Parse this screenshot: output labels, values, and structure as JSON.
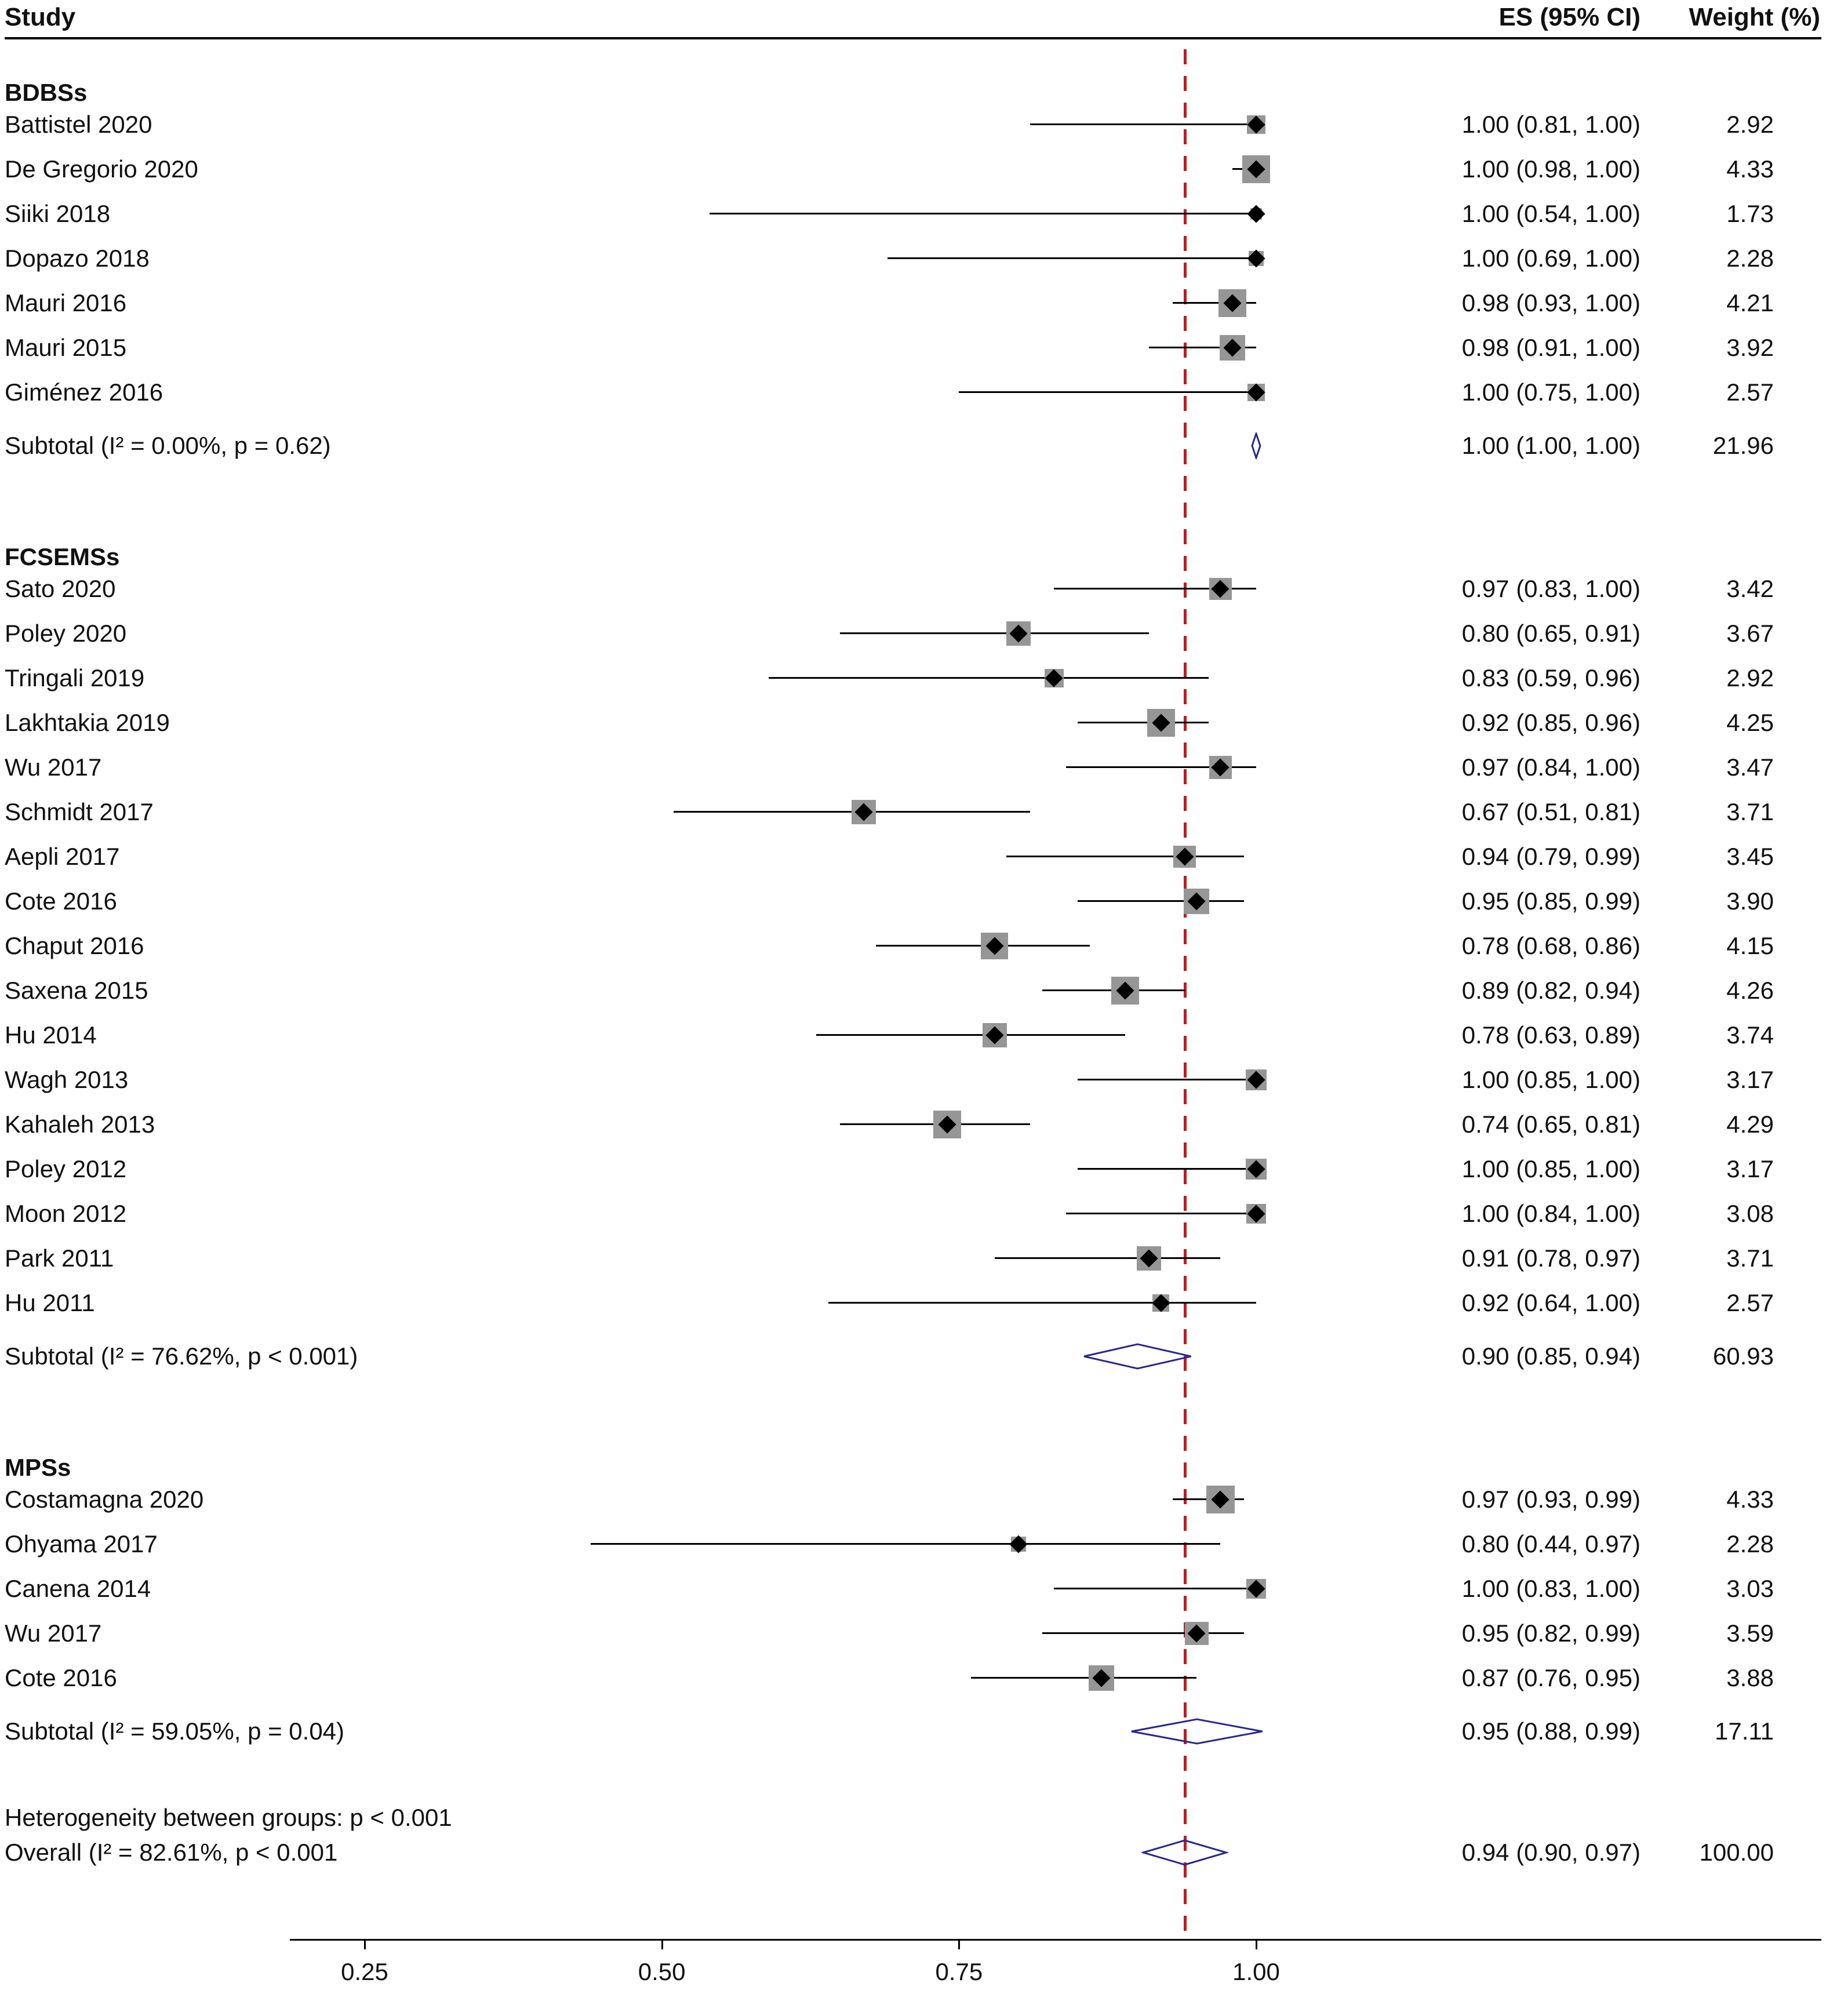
{
  "chart_data": {
    "type": "forest",
    "title": "",
    "columns": [
      "Study",
      "ES (95% CI)",
      "Weight (%)"
    ],
    "x_ticks": [
      0.25,
      0.5,
      0.75,
      1.0
    ],
    "x_tick_labels": [
      "0.25",
      "0.50",
      "0.75",
      "1.00"
    ],
    "x_range": [
      0.25,
      1.0
    ],
    "ref_line": 0.94,
    "legend": "none",
    "colors": {
      "ref_line": "#bb1e24",
      "square": "#969696",
      "marker": "#000000",
      "diamond_outline": "#28288f"
    },
    "groups": [
      {
        "name": "BDBSs",
        "studies": [
          {
            "label": "Battistel 2020",
            "es": 1.0,
            "lo": 0.81,
            "hi": 1.0,
            "es_text": "1.00 (0.81, 1.00)",
            "weight": "2.92"
          },
          {
            "label": "De Gregorio 2020",
            "es": 1.0,
            "lo": 0.98,
            "hi": 1.0,
            "es_text": "1.00 (0.98, 1.00)",
            "weight": "4.33"
          },
          {
            "label": "Siiki 2018",
            "es": 1.0,
            "lo": 0.54,
            "hi": 1.0,
            "es_text": "1.00 (0.54, 1.00)",
            "weight": "1.73"
          },
          {
            "label": "Dopazo 2018",
            "es": 1.0,
            "lo": 0.69,
            "hi": 1.0,
            "es_text": "1.00 (0.69, 1.00)",
            "weight": "2.28"
          },
          {
            "label": "Mauri 2016",
            "es": 0.98,
            "lo": 0.93,
            "hi": 1.0,
            "es_text": "0.98 (0.93, 1.00)",
            "weight": "4.21"
          },
          {
            "label": "Mauri 2015",
            "es": 0.98,
            "lo": 0.91,
            "hi": 1.0,
            "es_text": "0.98 (0.91, 1.00)",
            "weight": "3.92"
          },
          {
            "label": "Giménez 2016",
            "es": 1.0,
            "lo": 0.75,
            "hi": 1.0,
            "es_text": "1.00 (0.75, 1.00)",
            "weight": "2.57"
          }
        ],
        "subtotal": {
          "label": "Subtotal (I² = 0.00%, p = 0.62)",
          "es": 1.0,
          "lo": 1.0,
          "hi": 1.0,
          "es_text": "1.00 (1.00, 1.00)",
          "weight": "21.96"
        }
      },
      {
        "name": "FCSEMSs",
        "studies": [
          {
            "label": "Sato 2020",
            "es": 0.97,
            "lo": 0.83,
            "hi": 1.0,
            "es_text": "0.97 (0.83, 1.00)",
            "weight": "3.42"
          },
          {
            "label": "Poley 2020",
            "es": 0.8,
            "lo": 0.65,
            "hi": 0.91,
            "es_text": "0.80 (0.65, 0.91)",
            "weight": "3.67"
          },
          {
            "label": "Tringali 2019",
            "es": 0.83,
            "lo": 0.59,
            "hi": 0.96,
            "es_text": "0.83 (0.59, 0.96)",
            "weight": "2.92"
          },
          {
            "label": "Lakhtakia 2019",
            "es": 0.92,
            "lo": 0.85,
            "hi": 0.96,
            "es_text": "0.92 (0.85, 0.96)",
            "weight": "4.25"
          },
          {
            "label": "Wu 2017",
            "es": 0.97,
            "lo": 0.84,
            "hi": 1.0,
            "es_text": "0.97 (0.84, 1.00)",
            "weight": "3.47"
          },
          {
            "label": "Schmidt 2017",
            "es": 0.67,
            "lo": 0.51,
            "hi": 0.81,
            "es_text": "0.67 (0.51, 0.81)",
            "weight": "3.71"
          },
          {
            "label": "Aepli 2017",
            "es": 0.94,
            "lo": 0.79,
            "hi": 0.99,
            "es_text": "0.94 (0.79, 0.99)",
            "weight": "3.45"
          },
          {
            "label": "Cote 2016",
            "es": 0.95,
            "lo": 0.85,
            "hi": 0.99,
            "es_text": "0.95 (0.85, 0.99)",
            "weight": "3.90"
          },
          {
            "label": "Chaput 2016",
            "es": 0.78,
            "lo": 0.68,
            "hi": 0.86,
            "es_text": "0.78 (0.68, 0.86)",
            "weight": "4.15"
          },
          {
            "label": "Saxena 2015",
            "es": 0.89,
            "lo": 0.82,
            "hi": 0.94,
            "es_text": "0.89 (0.82, 0.94)",
            "weight": "4.26"
          },
          {
            "label": "Hu 2014",
            "es": 0.78,
            "lo": 0.63,
            "hi": 0.89,
            "es_text": "0.78 (0.63, 0.89)",
            "weight": "3.74"
          },
          {
            "label": "Wagh 2013",
            "es": 1.0,
            "lo": 0.85,
            "hi": 1.0,
            "es_text": "1.00 (0.85, 1.00)",
            "weight": "3.17"
          },
          {
            "label": "Kahaleh 2013",
            "es": 0.74,
            "lo": 0.65,
            "hi": 0.81,
            "es_text": "0.74 (0.65, 0.81)",
            "weight": "4.29"
          },
          {
            "label": "Poley 2012",
            "es": 1.0,
            "lo": 0.85,
            "hi": 1.0,
            "es_text": "1.00 (0.85, 1.00)",
            "weight": "3.17"
          },
          {
            "label": "Moon 2012",
            "es": 1.0,
            "lo": 0.84,
            "hi": 1.0,
            "es_text": "1.00 (0.84, 1.00)",
            "weight": "3.08"
          },
          {
            "label": "Park 2011",
            "es": 0.91,
            "lo": 0.78,
            "hi": 0.97,
            "es_text": "0.91 (0.78, 0.97)",
            "weight": "3.71"
          },
          {
            "label": "Hu 2011",
            "es": 0.92,
            "lo": 0.64,
            "hi": 1.0,
            "es_text": "0.92 (0.64, 1.00)",
            "weight": "2.57"
          }
        ],
        "subtotal": {
          "label": "Subtotal (I² = 76.62%, p < 0.001)",
          "es": 0.9,
          "lo": 0.85,
          "hi": 0.94,
          "es_text": "0.90 (0.85, 0.94)",
          "weight": "60.93"
        }
      },
      {
        "name": "MPSs",
        "studies": [
          {
            "label": "Costamagna 2020",
            "es": 0.97,
            "lo": 0.93,
            "hi": 0.99,
            "es_text": "0.97 (0.93, 0.99)",
            "weight": "4.33"
          },
          {
            "label": "Ohyama 2017",
            "es": 0.8,
            "lo": 0.44,
            "hi": 0.97,
            "es_text": "0.80 (0.44, 0.97)",
            "weight": "2.28"
          },
          {
            "label": "Canena 2014",
            "es": 1.0,
            "lo": 0.83,
            "hi": 1.0,
            "es_text": "1.00 (0.83, 1.00)",
            "weight": "3.03"
          },
          {
            "label": "Wu 2017",
            "es": 0.95,
            "lo": 0.82,
            "hi": 0.99,
            "es_text": "0.95 (0.82, 0.99)",
            "weight": "3.59"
          },
          {
            "label": "Cote 2016",
            "es": 0.87,
            "lo": 0.76,
            "hi": 0.95,
            "es_text": "0.87 (0.76, 0.95)",
            "weight": "3.88"
          }
        ],
        "subtotal": {
          "label": "Subtotal (I² = 59.05%, p = 0.04)",
          "es": 0.95,
          "lo": 0.88,
          "hi": 0.99,
          "es_text": "0.95 (0.88, 0.99)",
          "weight": "17.11"
        }
      }
    ],
    "heterogeneity_note": "Heterogeneity between groups: p < 0.001",
    "overall": {
      "label": "Overall (I² = 82.61%, p < 0.001",
      "es": 0.94,
      "lo": 0.9,
      "hi": 0.97,
      "es_text": "0.94 (0.90, 0.97)",
      "weight": "100.00"
    }
  }
}
